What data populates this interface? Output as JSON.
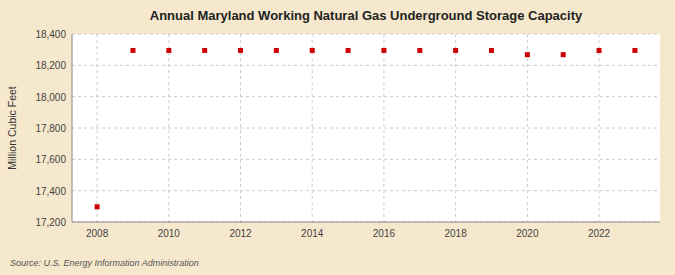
{
  "chart_data": {
    "type": "scatter",
    "title": "Annual Maryland Working Natural Gas Underground Storage Capacity",
    "ylabel": "Million Cubic Feet",
    "source": "Source: U.S. Energy Information Administration",
    "x": [
      2008,
      2009,
      2010,
      2011,
      2012,
      2013,
      2014,
      2015,
      2016,
      2017,
      2018,
      2019,
      2020,
      2021,
      2022,
      2023
    ],
    "values": [
      17297,
      18295,
      18295,
      18295,
      18295,
      18295,
      18295,
      18295,
      18295,
      18295,
      18295,
      18295,
      18268,
      18268,
      18295,
      18295
    ],
    "color": "#cc0000",
    "marker": "square",
    "xlim": [
      2007.3,
      2023.7
    ],
    "xticks": [
      2008,
      2010,
      2012,
      2014,
      2016,
      2018,
      2020,
      2022
    ],
    "ylim": [
      17200,
      18400
    ],
    "yticks": [
      {
        "value": 17200,
        "label": "17,200"
      },
      {
        "value": 17400,
        "label": "17,400"
      },
      {
        "value": 17600,
        "label": "17,600"
      },
      {
        "value": 17800,
        "label": "17,800"
      },
      {
        "value": 18000,
        "label": "18,000"
      },
      {
        "value": 18200,
        "label": "18,200"
      },
      {
        "value": 18400,
        "label": "18,400"
      }
    ],
    "grid": true
  }
}
